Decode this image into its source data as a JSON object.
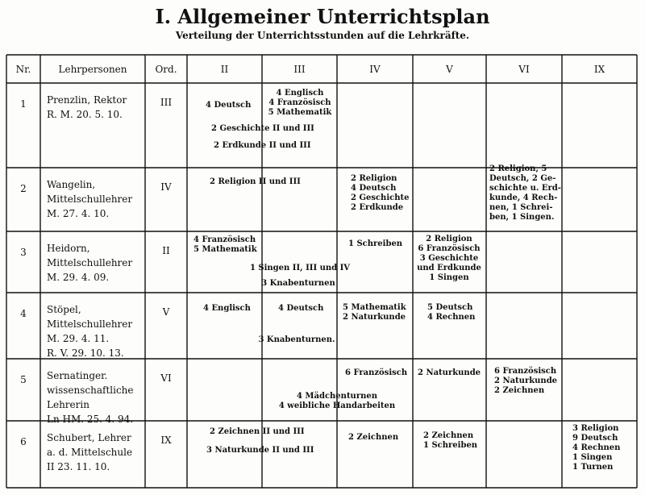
{
  "header": {
    "title": "I. Allgemeiner Unterrichtsplan",
    "subtitle": "Verteilung der Unterrichtsstunden auf die Lehrkräfte."
  },
  "table": {
    "columns": [
      "Nr.",
      "Lehrpersonen",
      "Ord.",
      "II",
      "III",
      "IV",
      "V",
      "VI",
      "IX"
    ],
    "rows": [
      {
        "nr": "1",
        "teacher": [
          "Prenzlin, Rektor",
          "R. M. 20. 5. 10."
        ],
        "ord": "III",
        "entries": [
          [
            "4 Deutsch"
          ],
          [
            "4 Englisch",
            "4 Französisch",
            "5 Mathematik"
          ],
          [
            "2 Geschichte II und III"
          ],
          [
            "2 Erdkunde II und III"
          ]
        ]
      },
      {
        "nr": "2",
        "teacher": [
          "Wangelin,",
          "Mittelschullehrer",
          "M. 27. 4. 10."
        ],
        "ord": "IV",
        "entries": [
          [
            "2 Religion II und III"
          ],
          [
            "2 Religion",
            "4 Deutsch",
            "2 Geschichte",
            "2 Erdkunde"
          ],
          [
            "2 Religion, 5",
            "Deutsch, 2 Ge-",
            "schichte u. Erd-",
            "kunde, 4 Rech-",
            "nen, 1 Schrei-",
            "ben, 1 Singen."
          ]
        ]
      },
      {
        "nr": "3",
        "teacher": [
          "Heidorn,",
          "Mittelschullehrer",
          "M. 29. 4. 09."
        ],
        "ord": "II",
        "entries": [
          [
            "4 Französisch",
            "5 Mathematik"
          ],
          [
            "1 Schreiben"
          ],
          [
            "2 Religion",
            "6 Französisch",
            "3 Geschichte",
            "und Erdkunde",
            "1 Singen"
          ],
          [
            "1 Singen II, III und IV"
          ],
          [
            "3 Knabenturnen"
          ]
        ]
      },
      {
        "nr": "4",
        "teacher": [
          "Stöpel,",
          "Mittelschullehrer",
          "M. 29. 4. 11.",
          "R. V. 29. 10. 13."
        ],
        "ord": "V",
        "entries": [
          [
            "4 Englisch"
          ],
          [
            "4 Deutsch"
          ],
          [
            "5 Mathematik",
            "2 Naturkunde"
          ],
          [
            "5 Deutsch",
            "4 Rechnen"
          ],
          [
            "3 Knabenturnen."
          ]
        ]
      },
      {
        "nr": "5",
        "teacher": [
          "Sernatinger.",
          "wissenschaftliche",
          "Lehrerin",
          "Ln HM. 25. 4. 94."
        ],
        "ord": "VI",
        "entries": [
          [
            "6 Französisch"
          ],
          [
            "2 Naturkunde"
          ],
          [
            "6 Französisch",
            "2 Naturkunde",
            "2 Zeichnen"
          ],
          [
            "4 Mädchenturnen",
            "4 weibliche Handarbeiten"
          ]
        ]
      },
      {
        "nr": "6",
        "teacher": [
          "Schubert, Lehrer",
          "a. d. Mittelschule",
          "II 23. 11. 10."
        ],
        "ord": "IX",
        "entries": [
          [
            "2 Zeichnen II und III"
          ],
          [
            "3 Naturkunde II und III"
          ],
          [
            "2 Zeichnen"
          ],
          [
            "2 Zeichnen",
            "1 Schreiben"
          ],
          [
            "3 Religion",
            "9 Deutsch",
            "4 Rechnen",
            "1 Singen",
            "1 Turnen"
          ]
        ]
      }
    ]
  }
}
